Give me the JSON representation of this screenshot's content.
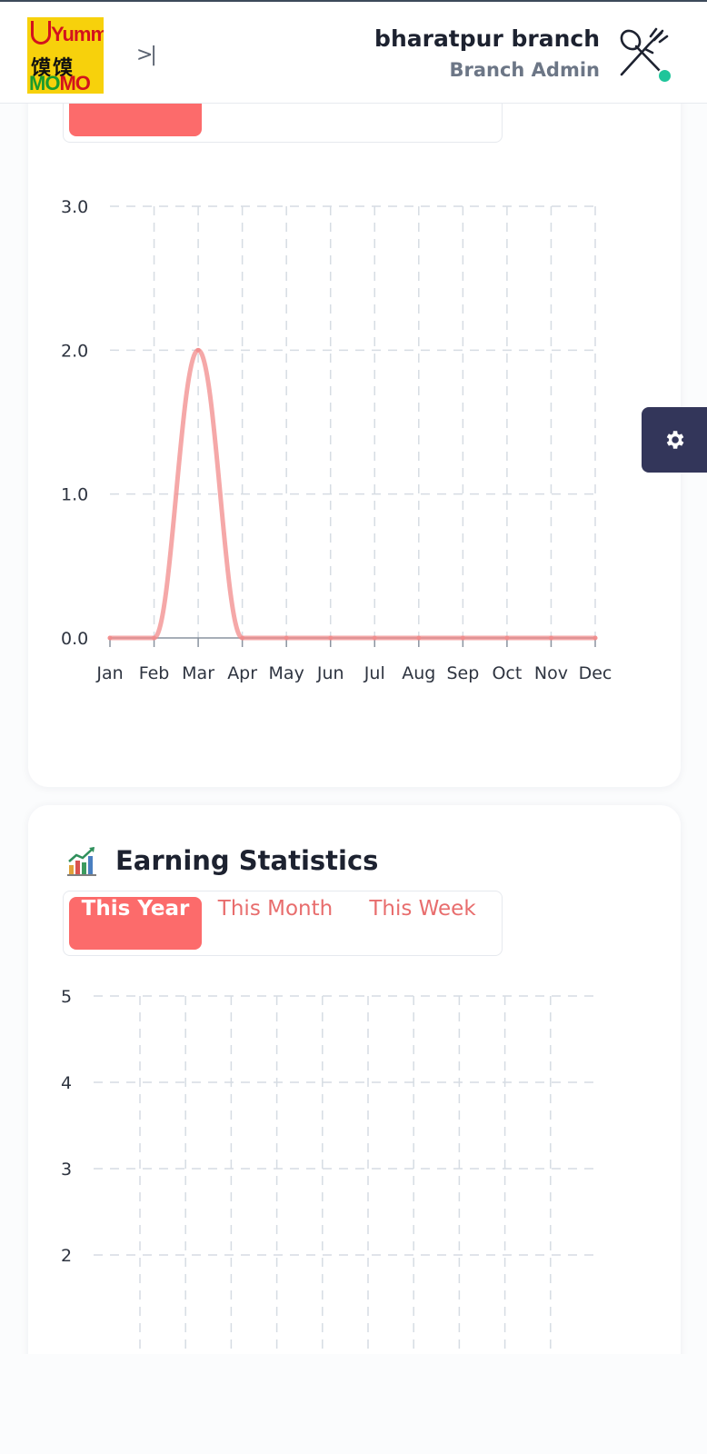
{
  "header": {
    "logo": {
      "line1": "Yumme",
      "line2": "馍馍",
      "line3a": "MO",
      "line3b": "MO"
    },
    "toggle_label": ">|",
    "branch_name": "bharatpur branch",
    "role": "Branch Admin",
    "avatar_icon": "fork-spoon-icon",
    "status_color": "#1fc59a"
  },
  "settings_icon": "gear-icon",
  "tabs": [
    "This Year",
    "This Month",
    "This Week"
  ],
  "active_tab": "This Year",
  "order_card": {
    "chart_data": {
      "type": "line",
      "categories": [
        "Jan",
        "Feb",
        "Mar",
        "Apr",
        "May",
        "Jun",
        "Jul",
        "Aug",
        "Sep",
        "Oct",
        "Nov",
        "Dec"
      ],
      "series": [
        {
          "values": [
            0,
            0,
            2,
            0,
            0,
            0,
            0,
            0,
            0,
            0,
            0,
            0
          ],
          "color": "#f28b8b"
        }
      ],
      "yticks": [
        "0.0",
        "1.0",
        "2.0",
        "3.0"
      ],
      "ylim": [
        0,
        3
      ],
      "grid": true
    }
  },
  "earning_card": {
    "title": "Earning Statistics",
    "icon": "bar-chart-growth-icon",
    "chart_data": {
      "type": "line",
      "yticks": [
        "2",
        "3",
        "4",
        "5"
      ],
      "ylim": [
        1,
        5
      ],
      "grid": true
    }
  }
}
